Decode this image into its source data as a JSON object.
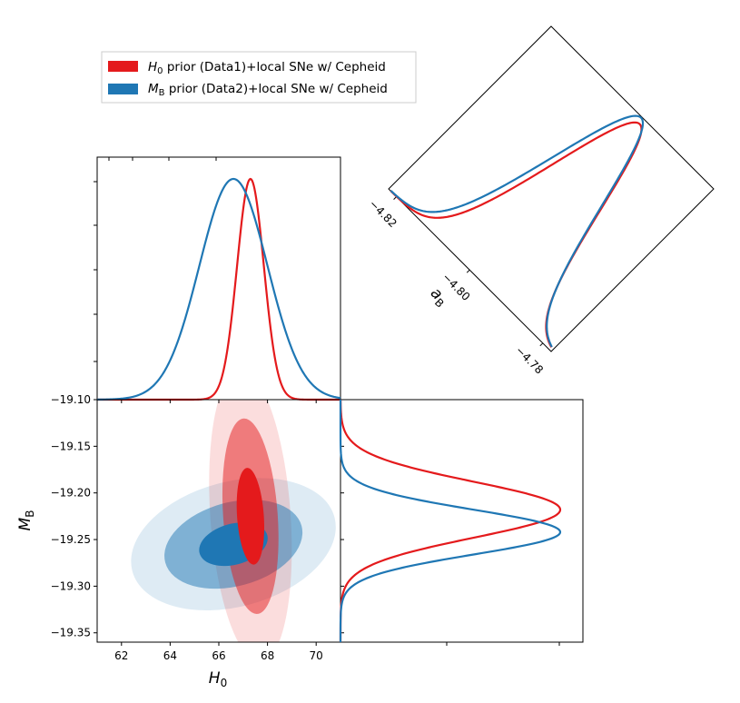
{
  "chart_data": [
    {
      "panel": "H0 marginal",
      "type": "line",
      "x_param": "H_0",
      "xlim": [
        61,
        71
      ],
      "series": [
        {
          "name": "H_0 prior (Data1)+local SNe w/ Cepheid",
          "color": "#e41a1c",
          "mean": 67.3,
          "sigma": 0.55
        },
        {
          "name": "M_B prior (Data2)+local SNe w/ Cepheid",
          "color": "#1f77b4",
          "mean": 66.6,
          "sigma": 1.4
        }
      ]
    },
    {
      "panel": "H0 vs M_B joint",
      "type": "scatter",
      "xlim": [
        61,
        71
      ],
      "ylim": [
        -19.36,
        -19.1
      ],
      "xticks": [
        62,
        64,
        66,
        68,
        70
      ],
      "yticks": [
        -19.1,
        -19.15,
        -19.2,
        -19.25,
        -19.3,
        -19.35
      ],
      "xlabel_main": "H",
      "xlabel_sub": "0",
      "ylabel_main": "M",
      "ylabel_sub": "B",
      "ellipses": [
        {
          "series": "blue",
          "cx": 66.6,
          "cy": -19.255,
          "levels": [
            {
              "rx": 1.44,
              "ry": 0.022,
              "angle_deg": -15,
              "opacity": 1.0
            },
            {
              "rx": 2.9,
              "ry": 0.045,
              "angle_deg": -15,
              "opacity": 0.5
            },
            {
              "rx": 4.3,
              "ry": 0.067,
              "angle_deg": -15,
              "opacity": 0.15
            }
          ]
        },
        {
          "series": "red",
          "cx": 67.3,
          "cy": -19.225,
          "levels": [
            {
              "rx": 0.55,
              "ry": 0.052,
              "angle_deg": -4,
              "opacity": 1.0
            },
            {
              "rx": 1.12,
              "ry": 0.105,
              "angle_deg": -4,
              "opacity": 0.5
            },
            {
              "rx": 1.65,
              "ry": 0.157,
              "angle_deg": -4,
              "opacity": 0.15
            }
          ]
        }
      ]
    },
    {
      "panel": "M_B marginal",
      "type": "line",
      "ylim": [
        -19.36,
        -19.1
      ],
      "series": [
        {
          "name": "H_0 prior (Data1)+local SNe w/ Cepheid",
          "color": "#e41a1c",
          "mean": -19.218,
          "sigma": 0.03
        },
        {
          "name": "M_B prior (Data2)+local SNe w/ Cepheid",
          "color": "#1f77b4",
          "mean": -19.242,
          "sigma": 0.024
        }
      ]
    },
    {
      "panel": "a_B marginal (rotated)",
      "type": "line",
      "axis_label_main": "a",
      "axis_label_sub": "B",
      "ticks": [
        "−4.82",
        "−4.80",
        "−4.78"
      ]
    }
  ],
  "legend": {
    "items": [
      {
        "main": "H",
        "sub": "0",
        "rest": " prior (Data1)+local SNe w/ Cepheid",
        "color": "#e41a1c"
      },
      {
        "main": "M",
        "sub": "B",
        "rest": " prior (Data2)+local SNe w/ Cepheid",
        "color": "#1f77b4"
      }
    ]
  },
  "colors": {
    "red": "#e41a1c",
    "blue": "#1f77b4"
  }
}
